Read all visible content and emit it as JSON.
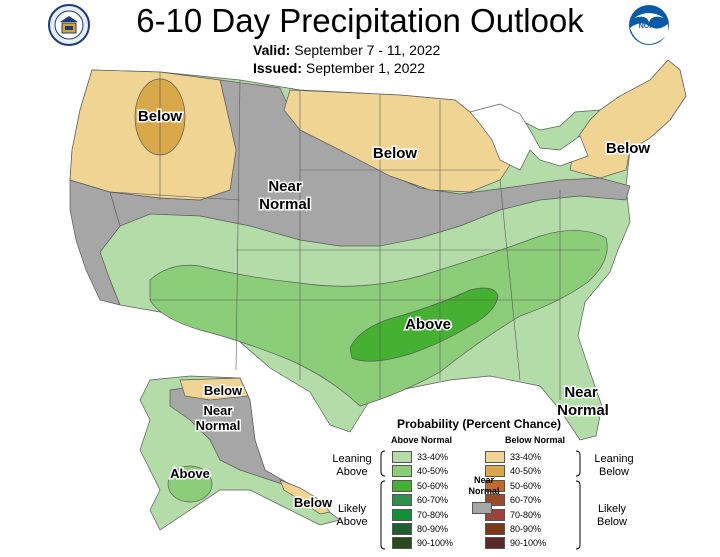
{
  "title": "6-10 Day Precipitation Outlook",
  "valid": {
    "label": "Valid:",
    "value": "September 7 - 11, 2022"
  },
  "issued": {
    "label": "Issued:",
    "value": "September 1, 2022"
  },
  "logos": {
    "left": "department-of-commerce-seal-icon",
    "right": "noaa-logo-icon"
  },
  "map_labels": {
    "nw_below": "Below",
    "north_below": "Below",
    "ne_below": "Below",
    "near_normal_1": "Near",
    "near_normal_2": "Normal",
    "above": "Above",
    "se_near_1": "Near",
    "se_near_2": "Normal",
    "ak_below_n": "Below",
    "ak_near_1": "Near",
    "ak_near_2": "Normal",
    "ak_above": "Above",
    "ak_below_s": "Below"
  },
  "colors": {
    "below_33_40": "#f0d494",
    "below_40_50": "#d8a84a",
    "near_normal": "#a6a6a6",
    "above_33_40": "#b3dca8",
    "above_40_50": "#8ccd79",
    "above_50_60": "#46b033",
    "water": "#ffffff",
    "boundary": "#5a5a5a"
  },
  "legend": {
    "title": "Probability (Percent Chance)",
    "above_header": "Above Normal",
    "below_header": "Below Normal",
    "leaning_above": "Leaning Above",
    "likely_above": "Likely Above",
    "leaning_below": "Leaning Below",
    "likely_below": "Likely Below",
    "near_normal": "Near Normal",
    "above_rows": [
      {
        "range": "33-40%",
        "color": "#b3dca8"
      },
      {
        "range": "40-50%",
        "color": "#8ccd79"
      },
      {
        "range": "50-60%",
        "color": "#46b033"
      },
      {
        "range": "60-70%",
        "color": "#2f8f4e"
      },
      {
        "range": "70-80%",
        "color": "#0f8f3a"
      },
      {
        "range": "80-90%",
        "color": "#1f5f2f"
      },
      {
        "range": "90-100%",
        "color": "#2a4a1e"
      }
    ],
    "below_rows": [
      {
        "range": "33-40%",
        "color": "#f0d494"
      },
      {
        "range": "40-50%",
        "color": "#d8a84a"
      },
      {
        "range": "50-60%",
        "color": "#c26a2a"
      },
      {
        "range": "60-70%",
        "color": "#9a4a2a"
      },
      {
        "range": "70-80%",
        "color": "#a0403a"
      },
      {
        "range": "80-90%",
        "color": "#7a3a1a"
      },
      {
        "range": "90-100%",
        "color": "#5a2a2a"
      }
    ],
    "near_color": "#a6a6a6"
  }
}
